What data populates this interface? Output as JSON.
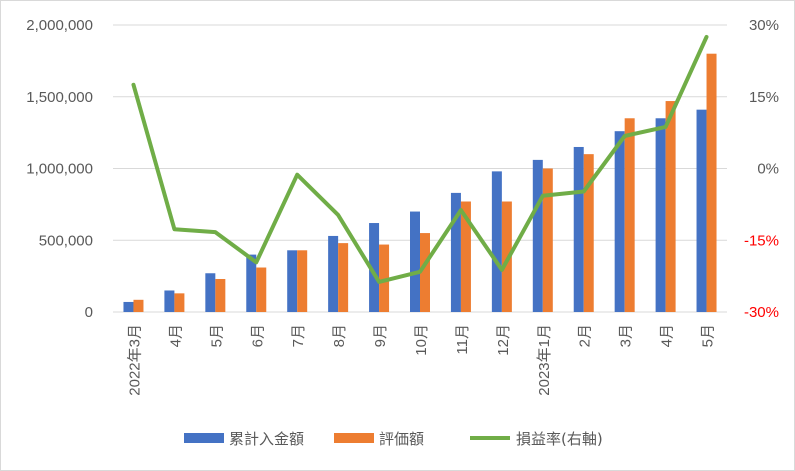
{
  "chart_data": {
    "type": "bar",
    "categories": [
      "2022年3月",
      "4月",
      "5月",
      "6月",
      "7月",
      "8月",
      "9月",
      "10月",
      "11月",
      "12月",
      "2023年1月",
      "2月",
      "3月",
      "4月",
      "5月"
    ],
    "series": [
      {
        "name": "累計入金額",
        "type": "bar",
        "axis": "left",
        "color": "#4472c4",
        "values": [
          70000,
          150000,
          270000,
          400000,
          430000,
          530000,
          620000,
          700000,
          830000,
          980000,
          1060000,
          1150000,
          1260000,
          1350000,
          1410000
        ]
      },
      {
        "name": "評価額",
        "type": "bar",
        "axis": "left",
        "color": "#ed7d31",
        "values": [
          85000,
          130000,
          230000,
          310000,
          430000,
          480000,
          470000,
          550000,
          770000,
          770000,
          1000000,
          1100000,
          1350000,
          1470000,
          1800000
        ]
      },
      {
        "name": "損益率(右軸)",
        "type": "line",
        "axis": "right",
        "color": "#70ad47",
        "values": [
          0.175,
          -0.127,
          -0.133,
          -0.196,
          -0.013,
          -0.097,
          -0.237,
          -0.216,
          -0.087,
          -0.212,
          -0.057,
          -0.048,
          0.068,
          0.087,
          0.275
        ]
      }
    ],
    "y_left": {
      "min": 0,
      "max": 2000000,
      "ticks": [
        "0",
        "500,000",
        "1,000,000",
        "1,500,000",
        "2,000,000"
      ]
    },
    "y_right": {
      "min": -0.3,
      "max": 0.3,
      "ticks": [
        "-30%",
        "-15%",
        "0%",
        "15%",
        "30%"
      ]
    },
    "negative_tick_color": "#ff0000",
    "grid": true,
    "legend_position": "bottom"
  }
}
